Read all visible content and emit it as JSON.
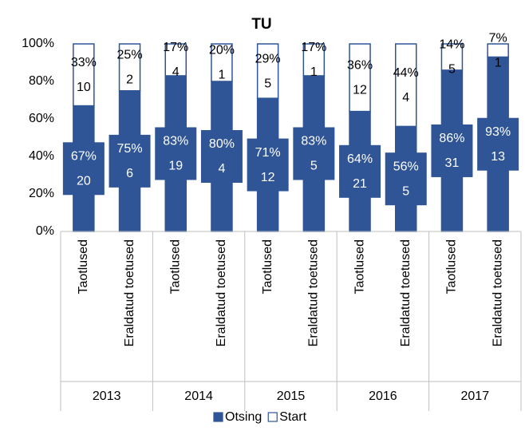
{
  "chart_data": {
    "type": "stacked_bar_percent",
    "title": "TU",
    "categories": [
      "Taotlused",
      "Eraldatud toetused",
      "Taotlused",
      "Eraldatud toetused",
      "Taotlused",
      "Eraldatud toetused",
      "Taotlused",
      "Eraldatud toetused",
      "Taotlused",
      "Eraldatud toetused"
    ],
    "groups": [
      "2013",
      "2014",
      "2015",
      "2016",
      "2017"
    ],
    "series": [
      {
        "name": "Otsing",
        "color": "#2f5597",
        "values": [
          67,
          75,
          83,
          80,
          71,
          83,
          64,
          56,
          86,
          93
        ],
        "value_labels": [
          "67%",
          "75%",
          "83%",
          "80%",
          "71%",
          "83%",
          "64%",
          "56%",
          "86%",
          "93%"
        ],
        "counts": [
          20,
          6,
          19,
          4,
          12,
          5,
          21,
          5,
          31,
          13
        ]
      },
      {
        "name": "Start",
        "color": "#ffffff",
        "values": [
          33,
          25,
          17,
          20,
          29,
          17,
          36,
          44,
          14,
          7
        ],
        "value_labels": [
          "33%",
          "25%",
          "17%",
          "20%",
          "29%",
          "17%",
          "36%",
          "44%",
          "14%",
          "7%"
        ],
        "counts": [
          10,
          2,
          4,
          1,
          5,
          1,
          12,
          4,
          5,
          1
        ]
      }
    ],
    "ylim": [
      0,
      100
    ],
    "yticks": [
      {
        "value": 0,
        "label": "0%"
      },
      {
        "value": 20,
        "label": "20%"
      },
      {
        "value": 40,
        "label": "40%"
      },
      {
        "value": 60,
        "label": "60%"
      },
      {
        "value": 80,
        "label": "80%"
      },
      {
        "value": 100,
        "label": "100%"
      }
    ],
    "legend": "bottom"
  }
}
